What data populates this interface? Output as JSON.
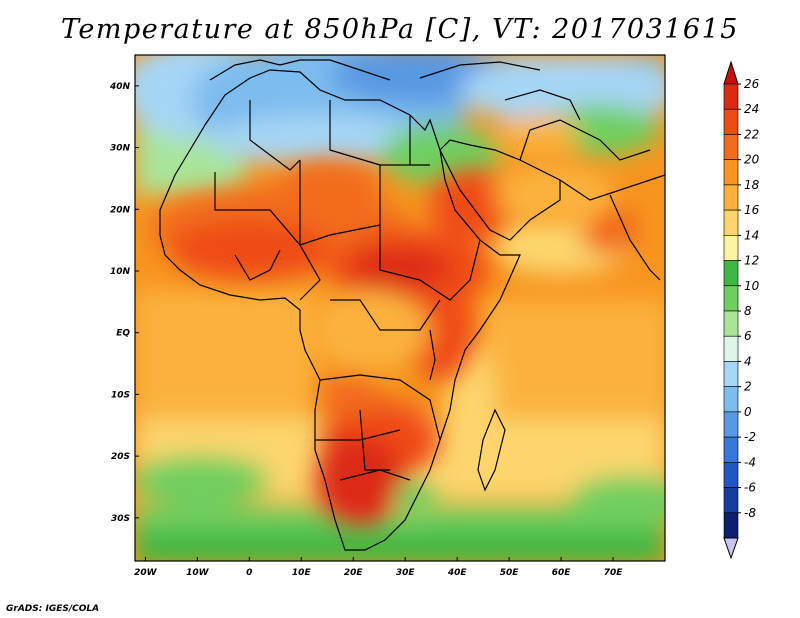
{
  "title": "Temperature at 850hPa [C], VT: 2017031615",
  "credit": "GrADS: IGES/COLA",
  "map": {
    "x_ticks": [
      {
        "lon": -20,
        "label": "20W"
      },
      {
        "lon": -10,
        "label": "10W"
      },
      {
        "lon": 0,
        "label": "0"
      },
      {
        "lon": 10,
        "label": "10E"
      },
      {
        "lon": 20,
        "label": "20E"
      },
      {
        "lon": 30,
        "label": "30E"
      },
      {
        "lon": 40,
        "label": "40E"
      },
      {
        "lon": 50,
        "label": "50E"
      },
      {
        "lon": 60,
        "label": "60E"
      },
      {
        "lon": 70,
        "label": "70E"
      }
    ],
    "y_ticks": [
      {
        "lat": 40,
        "label": "40N"
      },
      {
        "lat": 30,
        "label": "30N"
      },
      {
        "lat": 20,
        "label": "20N"
      },
      {
        "lat": 10,
        "label": "10N"
      },
      {
        "lat": 0,
        "label": "EQ"
      },
      {
        "lat": -10,
        "label": "10S"
      },
      {
        "lat": -20,
        "label": "20S"
      },
      {
        "lat": -30,
        "label": "30S"
      }
    ],
    "lon_range": [
      -22,
      80
    ],
    "lat_range": [
      -37,
      45
    ]
  },
  "colorbar": {
    "levels": [
      "26",
      "24",
      "22",
      "20",
      "18",
      "16",
      "14",
      "12",
      "10",
      "8",
      "6",
      "4",
      "2",
      "0",
      "-2",
      "-4",
      "-6",
      "-8"
    ],
    "colors": [
      "#dc2a12",
      "#ef4b14",
      "#f26c1e",
      "#f7951f",
      "#fbb23d",
      "#fcd66d",
      "#fdf4a0",
      "#3fb843",
      "#6fcf5e",
      "#a8e59a",
      "#ddf6e8",
      "#a6d6f5",
      "#7dbcee",
      "#5899e3",
      "#3a78d6",
      "#1f58c2",
      "#143e9a",
      "#0c1f6e"
    ]
  }
}
